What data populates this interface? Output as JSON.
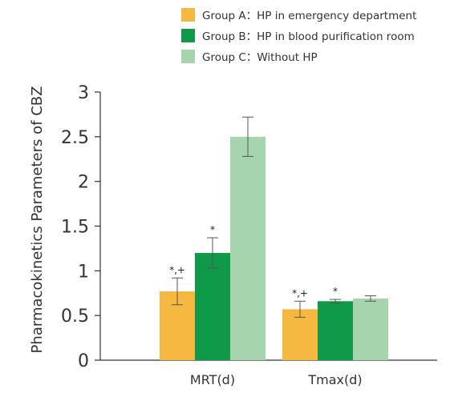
{
  "chart_data": {
    "type": "bar",
    "ylabel": "Pharmacokinetics Parameters of CBZ",
    "xlabel": "",
    "ylim": [
      0,
      3
    ],
    "yticks": [
      "0",
      "0.5",
      "1",
      "1.5",
      "2",
      "2.5",
      "3"
    ],
    "categories": [
      "MRT(d)",
      "Tmax(d)"
    ],
    "grid": false,
    "legend_position": "top",
    "series": [
      {
        "name": "Group A：HP in emergency department",
        "color": "#F5B942",
        "values": [
          0.77,
          0.57
        ],
        "errors": [
          0.15,
          0.09
        ],
        "annotations": [
          "*,+",
          "*,+"
        ]
      },
      {
        "name": "Group B：HP in blood purification room",
        "color": "#0E9A48",
        "values": [
          1.2,
          0.66
        ],
        "errors": [
          0.17,
          0.02
        ],
        "annotations": [
          "*",
          "*"
        ]
      },
      {
        "name": "Group C：Without HP",
        "color": "#A6D5AD",
        "values": [
          2.5,
          0.69
        ],
        "errors": [
          0.22,
          0.03
        ],
        "annotations": [
          "",
          ""
        ]
      }
    ]
  }
}
